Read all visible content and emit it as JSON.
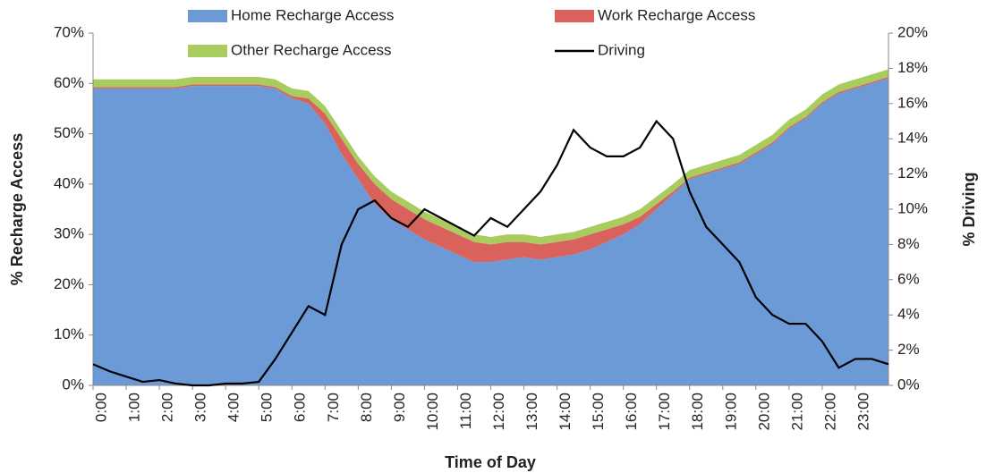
{
  "chart_data": {
    "type": "stacked-area-line",
    "x_label": "Time of Day",
    "y_label": "% Recharge Access",
    "y2_label": "% Driving",
    "x": [
      0,
      0.5,
      1,
      1.5,
      2,
      2.5,
      3,
      3.5,
      4,
      4.5,
      5,
      5.5,
      6,
      6.5,
      7,
      7.5,
      8,
      8.5,
      9,
      9.5,
      10,
      10.5,
      11,
      11.5,
      12,
      12.5,
      13,
      13.5,
      14,
      14.5,
      15,
      15.5,
      16,
      16.5,
      17,
      17.5,
      18,
      18.5,
      19,
      19.5,
      20,
      20.5,
      21,
      21.5,
      22,
      22.5,
      23,
      23.5,
      24
    ],
    "xlim": [
      0,
      24
    ],
    "xticks": [
      {
        "value": 0,
        "label": "0:00"
      },
      {
        "value": 1,
        "label": "1:00"
      },
      {
        "value": 2,
        "label": "2:00"
      },
      {
        "value": 3,
        "label": "3:00"
      },
      {
        "value": 4,
        "label": "4:00"
      },
      {
        "value": 5,
        "label": "5:00"
      },
      {
        "value": 6,
        "label": "6:00"
      },
      {
        "value": 7,
        "label": "7:00"
      },
      {
        "value": 8,
        "label": "8:00"
      },
      {
        "value": 9,
        "label": "9:00"
      },
      {
        "value": 10,
        "label": "10:00"
      },
      {
        "value": 11,
        "label": "11:00"
      },
      {
        "value": 12,
        "label": "12:00"
      },
      {
        "value": 13,
        "label": "13:00"
      },
      {
        "value": 14,
        "label": "14:00"
      },
      {
        "value": 15,
        "label": "15:00"
      },
      {
        "value": 16,
        "label": "16:00"
      },
      {
        "value": 17,
        "label": "17:00"
      },
      {
        "value": 18,
        "label": "18:00"
      },
      {
        "value": 19,
        "label": "19:00"
      },
      {
        "value": 20,
        "label": "20:00"
      },
      {
        "value": 21,
        "label": "21:00"
      },
      {
        "value": 22,
        "label": "22:00"
      },
      {
        "value": 23,
        "label": "23:00"
      }
    ],
    "ylim": [
      0,
      70
    ],
    "yticks": [
      {
        "value": 0,
        "label": "0%"
      },
      {
        "value": 10,
        "label": "10%"
      },
      {
        "value": 20,
        "label": "20%"
      },
      {
        "value": 30,
        "label": "30%"
      },
      {
        "value": 40,
        "label": "40%"
      },
      {
        "value": 50,
        "label": "50%"
      },
      {
        "value": 60,
        "label": "60%"
      },
      {
        "value": 70,
        "label": "70%"
      }
    ],
    "y2lim": [
      0,
      20
    ],
    "y2ticks": [
      {
        "value": 0,
        "label": "0%"
      },
      {
        "value": 2,
        "label": "2%"
      },
      {
        "value": 4,
        "label": "4%"
      },
      {
        "value": 6,
        "label": "6%"
      },
      {
        "value": 8,
        "label": "8%"
      },
      {
        "value": 10,
        "label": "10%"
      },
      {
        "value": 12,
        "label": "12%"
      },
      {
        "value": 14,
        "label": "14%"
      },
      {
        "value": 16,
        "label": "16%"
      },
      {
        "value": 18,
        "label": "18%"
      },
      {
        "value": 20,
        "label": "20%"
      }
    ],
    "series": [
      {
        "name": "Home Recharge Access",
        "color": "#6b9ad6",
        "kind": "area",
        "values": [
          59,
          59,
          59,
          59,
          59,
          59,
          59.5,
          59.5,
          59.5,
          59.5,
          59.5,
          59,
          57,
          56,
          52,
          46,
          41,
          36,
          33,
          31,
          29,
          27.5,
          26,
          24.5,
          24.5,
          25,
          25.5,
          25,
          25.5,
          26,
          27,
          28.5,
          30,
          32,
          35,
          38,
          41,
          42,
          43,
          44,
          46,
          48,
          51,
          53,
          56,
          58,
          59,
          60,
          61
        ]
      },
      {
        "name": "Work Recharge Access",
        "color": "#d9625c",
        "kind": "area",
        "values": [
          0.3,
          0.3,
          0.3,
          0.3,
          0.3,
          0.3,
          0.3,
          0.3,
          0.3,
          0.3,
          0.3,
          0.3,
          0.5,
          1,
          2,
          3,
          3,
          4,
          4,
          4,
          4,
          4,
          4,
          4,
          3.5,
          3.5,
          3,
          3,
          3,
          3,
          3,
          2.5,
          2,
          1.5,
          1,
          0.5,
          0.3,
          0.3,
          0.3,
          0.3,
          0.3,
          0.3,
          0.3,
          0.3,
          0.3,
          0.3,
          0.3,
          0.3,
          0.3
        ]
      },
      {
        "name": "Other Recharge Access",
        "color": "#a8cd5e",
        "kind": "area",
        "values": [
          1.5,
          1.5,
          1.5,
          1.5,
          1.5,
          1.5,
          1.5,
          1.5,
          1.5,
          1.5,
          1.5,
          1.5,
          1.5,
          1.5,
          1.5,
          1.5,
          1.5,
          1.5,
          1.5,
          1.5,
          1.5,
          1.5,
          1.5,
          1.5,
          1.5,
          1.5,
          1.5,
          1.5,
          1.5,
          1.5,
          1.5,
          1.5,
          1.5,
          1.5,
          1.5,
          1.5,
          1.5,
          1.5,
          1.5,
          1.5,
          1.5,
          1.5,
          1.5,
          1.5,
          1.5,
          1.5,
          1.5,
          1.5,
          1.5
        ]
      },
      {
        "name": "Driving",
        "color": "#000000",
        "kind": "line",
        "axis": "y2",
        "values": [
          1.2,
          0.8,
          0.5,
          0.2,
          0.3,
          0.1,
          0,
          0,
          0.1,
          0.1,
          0.2,
          1.5,
          3,
          4.5,
          4,
          8,
          10,
          10.5,
          9.5,
          9,
          10,
          9.5,
          9,
          8.5,
          9.5,
          9,
          10,
          11,
          12.5,
          14.5,
          13.5,
          13,
          13,
          13.5,
          15,
          14,
          11,
          9,
          8,
          7,
          5,
          4,
          3.5,
          3.5,
          2.5,
          1,
          1.5,
          1.5,
          1.2
        ]
      }
    ]
  }
}
